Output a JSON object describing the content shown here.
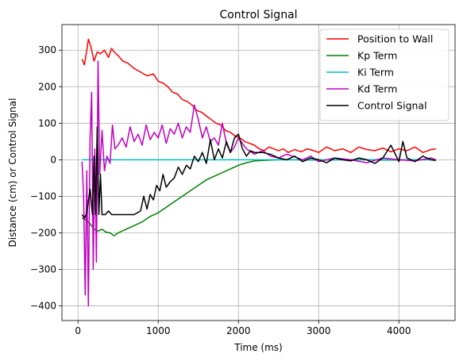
{
  "chart_data": {
    "type": "line",
    "title": "Control Signal",
    "xlabel": "Time (ms)",
    "ylabel": "Distance (cm) or Control Signal",
    "xlim": [
      -200,
      4700
    ],
    "ylim": [
      -440,
      370
    ],
    "xticks": [
      0,
      1000,
      2000,
      3000,
      4000
    ],
    "yticks": [
      -400,
      -300,
      -200,
      -100,
      0,
      100,
      200,
      300
    ],
    "grid": true,
    "legend_position": "top-right",
    "series": [
      {
        "name": "Position to Wall",
        "color": "#ff0000",
        "x": [
          50,
          80,
          110,
          130,
          160,
          200,
          240,
          280,
          330,
          380,
          420,
          450,
          500,
          560,
          620,
          700,
          780,
          860,
          940,
          1000,
          1060,
          1120,
          1180,
          1240,
          1300,
          1360,
          1420,
          1480,
          1540,
          1600,
          1660,
          1720,
          1780,
          1840,
          1900,
          1960,
          2020,
          2080,
          2140,
          2200,
          2260,
          2320,
          2380,
          2440,
          2500,
          2560,
          2620,
          2700,
          2780,
          2860,
          2940,
          3000,
          3100,
          3200,
          3300,
          3400,
          3500,
          3600,
          3700,
          3800,
          3900,
          4000,
          4100,
          4200,
          4300,
          4400,
          4460
        ],
        "y": [
          275,
          260,
          300,
          330,
          310,
          270,
          295,
          290,
          300,
          280,
          305,
          295,
          285,
          270,
          265,
          250,
          240,
          230,
          235,
          215,
          210,
          200,
          185,
          180,
          165,
          160,
          150,
          135,
          130,
          120,
          110,
          100,
          95,
          80,
          75,
          65,
          60,
          50,
          45,
          40,
          30,
          25,
          35,
          30,
          25,
          30,
          20,
          28,
          22,
          30,
          25,
          20,
          35,
          25,
          30,
          20,
          35,
          28,
          25,
          32,
          22,
          30,
          25,
          35,
          20,
          28,
          30
        ]
      },
      {
        "name": "Kp Term",
        "color": "#008000",
        "x": [
          50,
          100,
          150,
          200,
          250,
          300,
          350,
          400,
          450,
          500,
          600,
          700,
          800,
          900,
          1000,
          1100,
          1200,
          1300,
          1400,
          1500,
          1600,
          1700,
          1800,
          1900,
          2000,
          2100,
          2200,
          2300,
          2400,
          2500,
          2700,
          3000,
          3300,
          3600,
          3900,
          4200,
          4460
        ],
        "y": [
          -160,
          -165,
          -175,
          -190,
          -195,
          -190,
          -198,
          -200,
          -208,
          -200,
          -190,
          -180,
          -170,
          -155,
          -145,
          -130,
          -115,
          -100,
          -85,
          -70,
          -55,
          -45,
          -35,
          -25,
          -15,
          -8,
          -3,
          -2,
          -1,
          0,
          0,
          -1,
          0,
          0,
          -1,
          0,
          0
        ]
      },
      {
        "name": "Ki Term",
        "color": "#00bfbf",
        "x": [
          50,
          4460
        ],
        "y": [
          0,
          0
        ]
      },
      {
        "name": "Kd Term",
        "color": "#bf00bf",
        "x": [
          50,
          70,
          90,
          110,
          130,
          150,
          170,
          190,
          210,
          230,
          250,
          270,
          300,
          330,
          360,
          400,
          430,
          460,
          500,
          550,
          600,
          650,
          700,
          750,
          800,
          850,
          900,
          950,
          1000,
          1050,
          1100,
          1150,
          1200,
          1250,
          1300,
          1350,
          1400,
          1450,
          1500,
          1550,
          1600,
          1650,
          1700,
          1750,
          1800,
          1850,
          1900,
          1950,
          2000,
          2100,
          2200,
          2300,
          2400,
          2500,
          2600,
          2700,
          2800,
          2900,
          3000,
          3200,
          3400,
          3600,
          3800,
          4000,
          4200,
          4400,
          4460
        ],
        "y": [
          -5,
          -100,
          -370,
          -30,
          -400,
          60,
          185,
          -300,
          30,
          -280,
          270,
          -40,
          80,
          -30,
          10,
          -10,
          95,
          30,
          40,
          60,
          35,
          90,
          50,
          70,
          40,
          95,
          55,
          75,
          60,
          95,
          45,
          85,
          70,
          100,
          60,
          90,
          75,
          150,
          110,
          60,
          90,
          50,
          60,
          40,
          100,
          45,
          20,
          35,
          60,
          30,
          15,
          25,
          10,
          5,
          15,
          8,
          0,
          10,
          -5,
          5,
          0,
          -8,
          5,
          0,
          -3,
          5,
          0
        ]
      },
      {
        "name": "Control Signal",
        "color": "#000000",
        "x": [
          50,
          80,
          110,
          150,
          180,
          200,
          220,
          240,
          260,
          280,
          300,
          340,
          380,
          420,
          460,
          500,
          600,
          700,
          780,
          820,
          860,
          900,
          940,
          980,
          1020,
          1060,
          1100,
          1150,
          1200,
          1250,
          1300,
          1350,
          1400,
          1450,
          1500,
          1550,
          1600,
          1650,
          1700,
          1750,
          1800,
          1850,
          1900,
          1950,
          2000,
          2050,
          2100,
          2150,
          2200,
          2300,
          2400,
          2500,
          2600,
          2700,
          2800,
          2900,
          3000,
          3100,
          3200,
          3300,
          3400,
          3500,
          3600,
          3700,
          3800,
          3900,
          4000,
          4050,
          4100,
          4200,
          4300,
          4400,
          4460
        ],
        "y": [
          -150,
          -160,
          -145,
          -80,
          -150,
          10,
          -150,
          90,
          -150,
          -40,
          -150,
          -150,
          -140,
          -150,
          -150,
          -150,
          -150,
          -150,
          -140,
          -100,
          -135,
          -95,
          -110,
          -70,
          -85,
          -40,
          -75,
          -60,
          -50,
          -20,
          -40,
          -15,
          -25,
          10,
          -5,
          20,
          -10,
          55,
          0,
          30,
          5,
          50,
          20,
          60,
          70,
          30,
          10,
          25,
          20,
          20,
          15,
          5,
          0,
          10,
          -5,
          5,
          0,
          -8,
          5,
          0,
          -3,
          5,
          0,
          -10,
          5,
          40,
          -5,
          50,
          5,
          -5,
          10,
          0,
          -2
        ]
      }
    ]
  }
}
